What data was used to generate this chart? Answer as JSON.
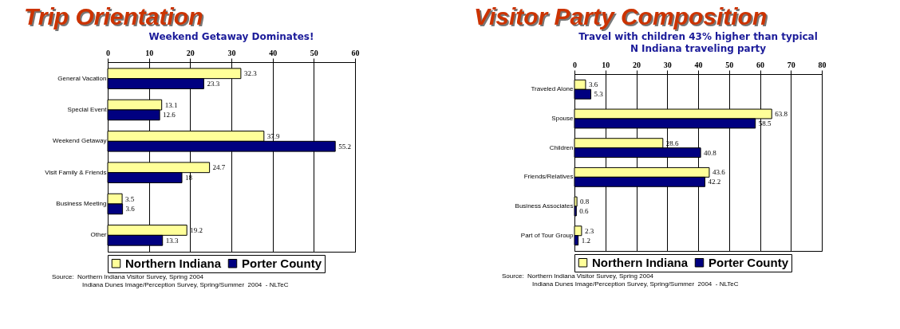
{
  "chart_data": [
    {
      "type": "bar",
      "orientation": "horizontal",
      "title": "Trip Orientation",
      "subtitle": "Weekend Getaway Dominates!",
      "categories": [
        "General Vacation",
        "Special Event",
        "Weekend Getaway",
        "Visit Family & Friends",
        "Business Meeting",
        "Other"
      ],
      "series": [
        {
          "name": "Northern Indiana",
          "color": "#ffff99",
          "values": [
            32.3,
            13.1,
            37.9,
            24.7,
            3.5,
            19.2
          ]
        },
        {
          "name": "Porter County",
          "color": "#000080",
          "values": [
            23.3,
            12.6,
            55.2,
            18,
            3.6,
            13.3
          ]
        }
      ],
      "xlim": [
        0,
        60
      ],
      "xticks": [
        0,
        10,
        20,
        30,
        40,
        50,
        60
      ],
      "grid": "x",
      "legend": "bottom",
      "data_labels": true,
      "annotations": [
        "Source:  Northern Indiana Visitor Survey, Spring 2004",
        "Indiana Dunes Image/Perception Survey, Spring/Summer  2004  - NLTeC"
      ]
    },
    {
      "type": "bar",
      "orientation": "horizontal",
      "title": "Visitor Party Composition",
      "subtitle": "Travel with children 43% higher than typical\nN Indiana traveling party",
      "categories": [
        "Traveled Alone",
        "Spouse",
        "Children",
        "Friends/Relatives",
        "Business Associates",
        "Part of Tour Group"
      ],
      "series": [
        {
          "name": "Northern Indiana",
          "color": "#ffff99",
          "values": [
            3.6,
            63.8,
            28.6,
            43.6,
            0.8,
            2.3
          ]
        },
        {
          "name": "Porter County",
          "color": "#000080",
          "values": [
            5.3,
            58.5,
            40.8,
            42.2,
            0.6,
            1.2
          ]
        }
      ],
      "xlim": [
        0,
        80
      ],
      "xticks": [
        0,
        10,
        20,
        30,
        40,
        50,
        60,
        70,
        80
      ],
      "grid": "x",
      "legend": "bottom",
      "data_labels": true,
      "annotations": [
        "Source:  Northern Indiana Visitor Survey, Spring 2004",
        "Indiana Dunes Image/Perception Survey, Spring/Summer  2004  - NLTeC"
      ]
    }
  ]
}
